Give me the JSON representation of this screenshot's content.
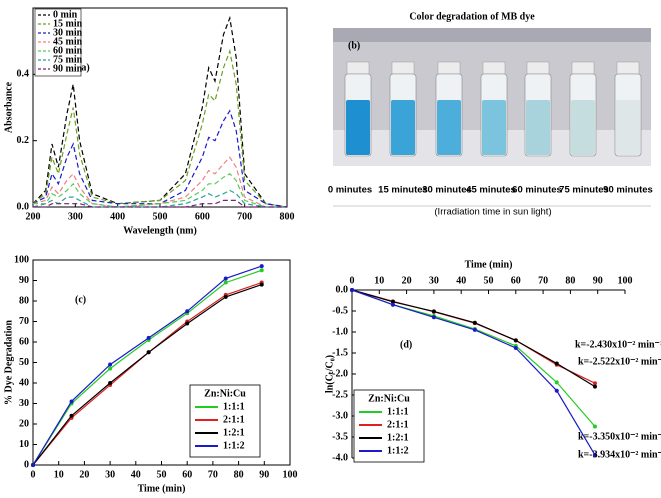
{
  "chart_data": [
    {
      "type": "line",
      "panel_label": "(a)",
      "x_label": "Wavelength (nm)",
      "y_label": "Absorbance",
      "line_style": "dashed",
      "legend": "upper left",
      "xlim": [
        200,
        800
      ],
      "xticks": [
        200,
        300,
        400,
        500,
        600,
        700,
        800
      ],
      "ylim": [
        0,
        0.6
      ],
      "yticks": [
        {
          "value": 0,
          "label": "0.0"
        },
        0.2,
        0.4
      ],
      "x": [
        200,
        230,
        245,
        260,
        280,
        295,
        310,
        340,
        400,
        500,
        560,
        600,
        615,
        630,
        650,
        665,
        680,
        700,
        750,
        800
      ],
      "series": [
        {
          "name": "0 min",
          "color": "#000000",
          "values": [
            0.01,
            0.05,
            0.19,
            0.12,
            0.28,
            0.37,
            0.2,
            0.04,
            0.01,
            0.02,
            0.1,
            0.3,
            0.42,
            0.38,
            0.52,
            0.57,
            0.45,
            0.1,
            0.01,
            0
          ]
        },
        {
          "name": "15 min",
          "color": "#6aa121",
          "values": [
            0.01,
            0.04,
            0.15,
            0.1,
            0.22,
            0.3,
            0.16,
            0.03,
            0.01,
            0.02,
            0.08,
            0.25,
            0.34,
            0.32,
            0.42,
            0.47,
            0.37,
            0.08,
            0.01,
            0
          ]
        },
        {
          "name": "30 min",
          "color": "#1a1acc",
          "values": [
            0.01,
            0.03,
            0.1,
            0.07,
            0.15,
            0.19,
            0.1,
            0.02,
            0.01,
            0.01,
            0.05,
            0.15,
            0.21,
            0.2,
            0.26,
            0.29,
            0.23,
            0.05,
            0.01,
            0
          ]
        },
        {
          "name": "45 min",
          "color": "#f08080",
          "values": [
            0.01,
            0.02,
            0.06,
            0.04,
            0.08,
            0.1,
            0.06,
            0.01,
            0,
            0.01,
            0.03,
            0.08,
            0.11,
            0.1,
            0.13,
            0.15,
            0.12,
            0.03,
            0,
            0
          ]
        },
        {
          "name": "60 min",
          "color": "#55cc55",
          "values": [
            0.01,
            0.01,
            0.04,
            0.03,
            0.05,
            0.07,
            0.04,
            0.01,
            0,
            0.01,
            0.02,
            0.05,
            0.07,
            0.07,
            0.09,
            0.1,
            0.08,
            0.02,
            0,
            0
          ]
        },
        {
          "name": "75 min",
          "color": "#2aa198",
          "values": [
            0,
            0.01,
            0.02,
            0.01,
            0.03,
            0.03,
            0.02,
            0,
            0,
            0,
            0.01,
            0.03,
            0.04,
            0.03,
            0.04,
            0.05,
            0.04,
            0.01,
            0,
            0
          ]
        },
        {
          "name": "90 min",
          "color": "#7b1f7b",
          "values": [
            0,
            0,
            0.01,
            0.01,
            0.01,
            0.01,
            0.01,
            0,
            0,
            0,
            0,
            0.01,
            0.01,
            0.01,
            0.02,
            0.02,
            0.02,
            0,
            0,
            0
          ]
        }
      ]
    },
    {
      "type": "line",
      "panel_label": "(c)",
      "x_label": "Time (min)",
      "y_label": "% Dye Degradation",
      "legend": "lower right",
      "legend_title": "Zn:Ni:Cu",
      "xlim": [
        0,
        100
      ],
      "xticks": [
        0,
        10,
        20,
        30,
        40,
        50,
        60,
        70,
        80,
        90,
        100
      ],
      "ylim": [
        0,
        100
      ],
      "yticks": [
        0,
        10,
        20,
        30,
        40,
        50,
        60,
        70,
        80,
        90,
        100
      ],
      "x": [
        0,
        15,
        30,
        45,
        60,
        75,
        89
      ],
      "series": [
        {
          "name": "1:1:1",
          "color": "#22cc22",
          "values": [
            0,
            30,
            47,
            61,
            74,
            89,
            95
          ]
        },
        {
          "name": "2:1:1",
          "color": "#e02020",
          "values": [
            0,
            23,
            39,
            55,
            70,
            83,
            89
          ]
        },
        {
          "name": "1:2:1",
          "color": "#000000",
          "values": [
            0,
            24,
            40,
            55,
            69,
            82,
            88
          ]
        },
        {
          "name": "1:1:2",
          "color": "#1a1acc",
          "values": [
            0,
            31,
            49,
            62,
            75,
            91,
            97
          ]
        }
      ]
    },
    {
      "type": "line",
      "panel_label": "(d)",
      "x_label": "Time (min)",
      "y_label": "ln(Cₜ/C₀)",
      "legend": "lower left",
      "legend_title": "Zn:Ni:Cu",
      "x_axis_position": "top",
      "xlim": [
        0,
        100
      ],
      "xticks": [
        0,
        10,
        20,
        30,
        40,
        50,
        60,
        70,
        80,
        90,
        100
      ],
      "ylim": [
        -4,
        0
      ],
      "yticks": [
        {
          "value": -4,
          "label": "-4.0"
        },
        -3.5,
        {
          "value": -3,
          "label": "-3.0"
        },
        -2.5,
        {
          "value": -2,
          "label": "-2.0"
        },
        -1.5,
        {
          "value": -1,
          "label": "-1.0"
        },
        -0.5,
        {
          "value": 0,
          "label": "0.0"
        }
      ],
      "x": [
        0,
        15,
        30,
        45,
        60,
        75,
        89
      ],
      "series": [
        {
          "name": "1:1:1",
          "color": "#22cc22",
          "values": [
            0,
            -0.35,
            -0.62,
            -0.93,
            -1.33,
            -2.2,
            -3.25
          ]
        },
        {
          "name": "2:1:1",
          "color": "#e02020",
          "values": [
            0,
            -0.27,
            -0.52,
            -0.79,
            -1.2,
            -1.78,
            -2.22
          ]
        },
        {
          "name": "1:2:1",
          "color": "#000000",
          "values": [
            0,
            -0.28,
            -0.51,
            -0.78,
            -1.2,
            -1.75,
            -2.3
          ]
        },
        {
          "name": "1:1:2",
          "color": "#1a1acc",
          "values": [
            0,
            -0.35,
            -0.65,
            -0.95,
            -1.38,
            -2.4,
            -3.93
          ]
        }
      ],
      "annotations": [
        "k=-2.430x10⁻² min⁻¹",
        "k=-2.522x10⁻² min⁻¹",
        "k=-3.350x10⁻² min⁻¹",
        "k=-3.934x10⁻² min⁻¹"
      ]
    }
  ],
  "photo_panel": {
    "title": "Color degradation of MB dye",
    "label": "(b)",
    "captions": [
      "0 minutes",
      "15 minutes",
      "30 minutes",
      "45 minutes",
      "60 minutes",
      "75 minutes",
      "90 minutes"
    ],
    "footer": "(Irradiation time in sun light)"
  }
}
